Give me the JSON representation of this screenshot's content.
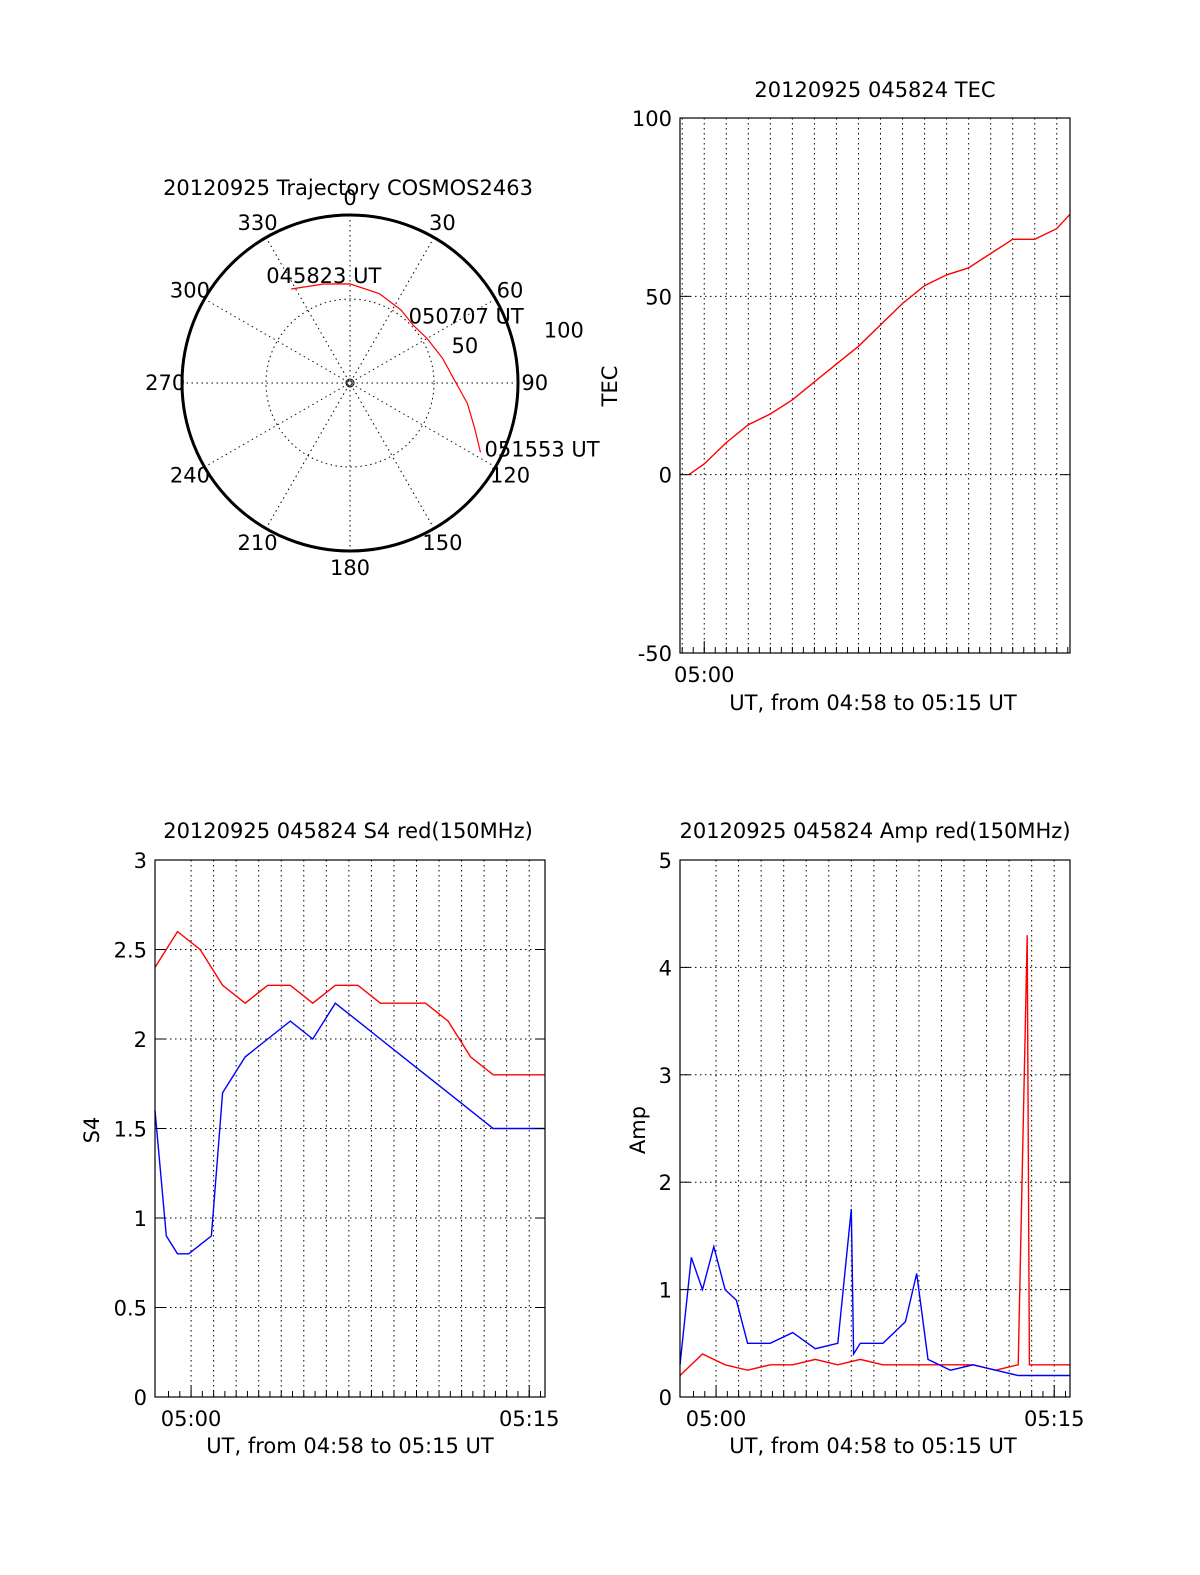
{
  "chart_data": [
    {
      "id": "trajectory",
      "type": "polar",
      "title": "20120925 Trajectory COSMOS2463",
      "azimuth_labels": [
        "0",
        "30",
        "60",
        "90",
        "120",
        "150",
        "180",
        "210",
        "240",
        "270",
        "300",
        "330"
      ],
      "elevation_labels": [
        "50",
        "100"
      ],
      "annotations": [
        {
          "text": "045823 UT",
          "azimuth": 328,
          "elevation_zenith": 66
        },
        {
          "text": "050707 UT",
          "azimuth": 48,
          "elevation_zenith": 51
        },
        {
          "text": "051553 UT",
          "azimuth": 118,
          "elevation_zenith": 88
        }
      ],
      "series": [
        {
          "color": "#ff0000",
          "points": [
            [
              328,
              66
            ],
            [
              345,
              61
            ],
            [
              0,
              59
            ],
            [
              18,
              56
            ],
            [
              35,
              53
            ],
            [
              48,
              51
            ],
            [
              60,
              53
            ],
            [
              75,
              57
            ],
            [
              88,
              62
            ],
            [
              100,
              71
            ],
            [
              110,
              79
            ],
            [
              118,
              88
            ]
          ]
        }
      ],
      "grid": true
    },
    {
      "id": "tec",
      "type": "line",
      "title": "20120925 045824 TEC",
      "xlabel": "UT, from 04:58 to 05:15 UT",
      "ylabel": "TEC",
      "x_tick_labels": [
        {
          "value": "05:00",
          "t": 1.0
        }
      ],
      "y_ticks": [
        -50,
        0,
        50,
        100
      ],
      "ylim": [
        -50,
        100
      ],
      "xlim": [
        -0.1,
        17.6
      ],
      "grid": true,
      "series": [
        {
          "color": "#ff0000",
          "x": [
            0.3,
            1.0,
            2.0,
            3.0,
            4.0,
            5.0,
            6.0,
            7.0,
            8.0,
            9.0,
            10.0,
            11.0,
            12.0,
            13.0,
            14.0,
            15.0,
            16.0,
            17.0,
            17.6
          ],
          "y": [
            0,
            3,
            9,
            14,
            17,
            21,
            26,
            31,
            36,
            42,
            48,
            53,
            56,
            58,
            62,
            66,
            66,
            69,
            73
          ]
        }
      ]
    },
    {
      "id": "s4",
      "type": "line",
      "title": "20120925 045824 S4 red(150MHz)",
      "xlabel": "UT, from 04:58 to 05:15 UT",
      "ylabel": "S4",
      "x_tick_labels": [
        {
          "value": "05:00",
          "t": 1.6
        },
        {
          "value": "05:15",
          "t": 16.6
        }
      ],
      "y_ticks": [
        0,
        0.5,
        1,
        1.5,
        2,
        2.5,
        3
      ],
      "y_tick_labels": [
        "0",
        "0.5",
        "1",
        "1.5",
        "2",
        "2.5",
        "3"
      ],
      "ylim": [
        0,
        3
      ],
      "xlim": [
        0,
        17.3
      ],
      "grid": true,
      "series": [
        {
          "color": "#ff0000",
          "x": [
            0.0,
            1.0,
            2.0,
            3.0,
            4.0,
            5.0,
            6.0,
            7.0,
            8.0,
            9.0,
            10.0,
            11.0,
            12.0,
            13.0,
            14.0,
            15.0,
            16.0,
            17.3
          ],
          "y": [
            2.4,
            2.6,
            2.5,
            2.3,
            2.2,
            2.3,
            2.3,
            2.2,
            2.3,
            2.3,
            2.2,
            2.2,
            2.2,
            2.1,
            1.9,
            1.8,
            1.8,
            1.8
          ]
        },
        {
          "color": "#0000ff",
          "x": [
            0.0,
            0.5,
            1.0,
            1.5,
            2.0,
            2.5,
            3.0,
            4.0,
            5.0,
            6.0,
            7.0,
            8.0,
            9.0,
            10.0,
            11.0,
            12.0,
            13.0,
            14.0,
            15.0,
            16.0,
            17.3
          ],
          "y": [
            1.6,
            0.9,
            0.8,
            0.8,
            0.85,
            0.9,
            1.7,
            1.9,
            2.0,
            2.1,
            2.0,
            2.2,
            2.1,
            2.0,
            1.9,
            1.8,
            1.7,
            1.6,
            1.5,
            1.5,
            1.5
          ]
        }
      ]
    },
    {
      "id": "amp",
      "type": "line",
      "title": "20120925 045824 Amp red(150MHz)",
      "xlabel": "UT, from 04:58 to 05:15 UT",
      "ylabel": "Amp",
      "x_tick_labels": [
        {
          "value": "05:00",
          "t": 1.6
        },
        {
          "value": "05:15",
          "t": 16.6
        }
      ],
      "y_ticks": [
        0,
        1,
        2,
        3,
        4,
        5
      ],
      "ylim": [
        0,
        5
      ],
      "xlim": [
        0,
        17.3
      ],
      "grid": true,
      "series": [
        {
          "color": "#ff0000",
          "x": [
            0.0,
            1.0,
            2.0,
            3.0,
            4.0,
            5.0,
            6.0,
            7.0,
            8.0,
            9.0,
            10.0,
            11.0,
            12.0,
            13.0,
            14.0,
            15.0,
            15.4,
            15.5,
            16.0,
            17.3
          ],
          "y": [
            0.2,
            0.4,
            0.3,
            0.25,
            0.3,
            0.3,
            0.35,
            0.3,
            0.35,
            0.3,
            0.3,
            0.3,
            0.3,
            0.3,
            0.25,
            0.3,
            4.3,
            0.3,
            0.3,
            0.3
          ]
        },
        {
          "color": "#0000ff",
          "x": [
            0.0,
            0.5,
            1.0,
            1.5,
            2.0,
            2.5,
            3.0,
            4.0,
            5.0,
            6.0,
            7.0,
            7.6,
            7.7,
            8.0,
            9.0,
            10.0,
            10.5,
            11.0,
            12.0,
            13.0,
            14.0,
            15.0,
            16.0,
            17.3
          ],
          "y": [
            0.3,
            1.3,
            1.0,
            1.4,
            1.0,
            0.9,
            0.5,
            0.5,
            0.6,
            0.45,
            0.5,
            1.75,
            0.4,
            0.5,
            0.5,
            0.7,
            1.15,
            0.35,
            0.25,
            0.3,
            0.25,
            0.2,
            0.2,
            0.2
          ]
        }
      ]
    }
  ]
}
